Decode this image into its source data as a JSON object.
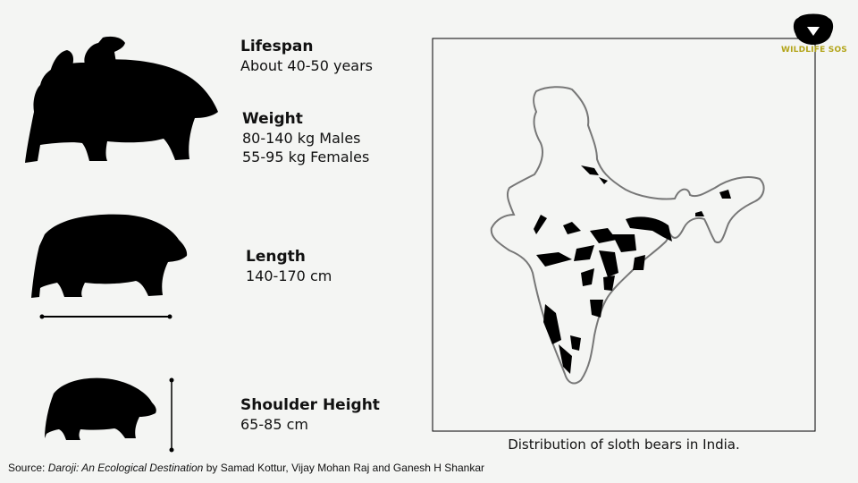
{
  "facts": [
    {
      "title": "Lifespan",
      "lines": [
        "About 40-50 years"
      ]
    },
    {
      "title": "Weight",
      "lines": [
        "80-140 kg Males",
        "55-95 kg Females"
      ]
    },
    {
      "title": "Length",
      "lines": [
        "140-170 cm"
      ]
    },
    {
      "title": "Shoulder Height",
      "lines": [
        "65-85 cm"
      ]
    }
  ],
  "map": {
    "caption": "Distribution of sloth bears in India."
  },
  "logo": {
    "text": "WILDLIFE SOS"
  },
  "source": {
    "prefix": "Source:",
    "title": "Daroji: An Ecological Destination",
    "authors": "by Samad Kottur, Vijay Mohan Raj and Ganesh H Shankar"
  }
}
